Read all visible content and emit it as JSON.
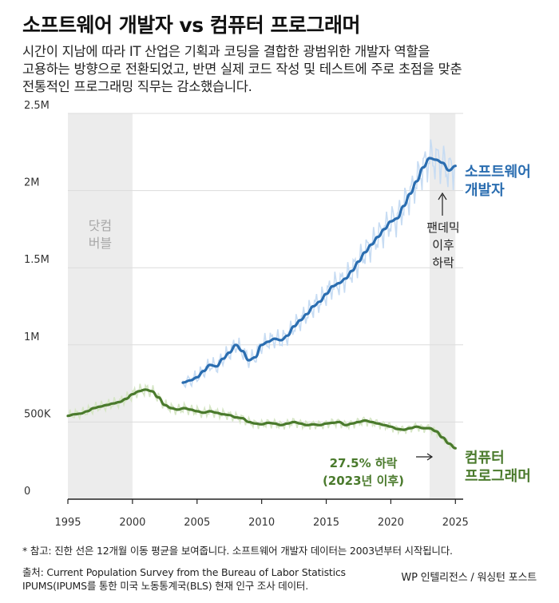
{
  "header": {
    "title": "소프트웨어 개발자 vs 컴퓨터 프로그래머",
    "subtitle_lines": [
      "시간이 지남에 따라 IT 산업은 기획과 코딩을 결합한 광범위한 개발자 역할을",
      "고용하는 방향으로 전환되었고, 반면 실제 코드 작성 및 테스트에 주로 초점을 맞춘",
      "전통적인 프로그래밍 직무는 감소했습니다."
    ]
  },
  "chart_data": {
    "type": "line",
    "title": "소프트웨어 개발자 vs 컴퓨터 프로그래머",
    "xlim": [
      1995,
      2025.6
    ],
    "ylim": [
      0,
      2500000
    ],
    "y_ticks": [
      0,
      500000,
      1000000,
      1500000,
      2000000,
      2500000
    ],
    "y_tick_labels": [
      "0",
      "500K",
      "1M",
      "1.5M",
      "2M",
      "2.5M"
    ],
    "x_ticks": [
      1995,
      2000,
      2005,
      2010,
      2015,
      2020,
      2025
    ],
    "x_tick_labels": [
      "1995",
      "2000",
      "2005",
      "2010",
      "2015",
      "2020",
      "2025"
    ],
    "grid": true,
    "shaded_periods": [
      {
        "label_lines": [
          "닷컴",
          "버블"
        ],
        "start": 1995,
        "end": 2000
      },
      {
        "label_lines": [],
        "start": 2023,
        "end": 2025
      }
    ],
    "series": [
      {
        "name": "소프트웨어 개발자",
        "label_lines": [
          "소프트웨어",
          "개발자"
        ],
        "color": "#2a6db0",
        "raw_color": "#c7dcf3",
        "x": [
          2003.9,
          2004.5,
          2005,
          2005.5,
          2006,
          2006.5,
          2007,
          2007.5,
          2008,
          2008.5,
          2009,
          2009.5,
          2010,
          2010.5,
          2011,
          2011.5,
          2012,
          2012.5,
          2013,
          2013.5,
          2014,
          2014.5,
          2015,
          2015.5,
          2016,
          2016.5,
          2017,
          2017.5,
          2018,
          2018.5,
          2019,
          2019.5,
          2020,
          2020.5,
          2021,
          2021.5,
          2022,
          2022.5,
          2023,
          2023.5,
          2024,
          2024.5,
          2025
        ],
        "values": [
          755000,
          770000,
          790000,
          830000,
          870000,
          860000,
          910000,
          950000,
          1000000,
          960000,
          900000,
          920000,
          1000000,
          1020000,
          1040000,
          1030000,
          1060000,
          1120000,
          1160000,
          1200000,
          1250000,
          1280000,
          1330000,
          1380000,
          1400000,
          1430000,
          1480000,
          1540000,
          1600000,
          1650000,
          1700000,
          1750000,
          1800000,
          1820000,
          1900000,
          1980000,
          2060000,
          2150000,
          2210000,
          2200000,
          2180000,
          2130000,
          2160000
        ]
      },
      {
        "name": "컴퓨터 프로그래머",
        "label_lines": [
          "컴퓨터",
          "프로그래머"
        ],
        "color": "#4a7a2c",
        "raw_color": "#d6e6c6",
        "x": [
          1995,
          1995.5,
          1996,
          1996.5,
          1997,
          1997.5,
          1998,
          1998.5,
          1999,
          1999.5,
          2000,
          2000.5,
          2001,
          2001.5,
          2002,
          2002.5,
          2003,
          2003.5,
          2004,
          2004.5,
          2005,
          2005.5,
          2006,
          2006.5,
          2007,
          2007.5,
          2008,
          2008.5,
          2009,
          2009.5,
          2010,
          2010.5,
          2011,
          2011.5,
          2012,
          2012.5,
          2013,
          2013.5,
          2014,
          2014.5,
          2015,
          2015.5,
          2016,
          2016.5,
          2017,
          2017.5,
          2018,
          2018.5,
          2019,
          2019.5,
          2020,
          2020.5,
          2021,
          2021.5,
          2022,
          2022.5,
          2023,
          2023.5,
          2024,
          2024.5,
          2025
        ],
        "values": [
          540000,
          550000,
          555000,
          570000,
          590000,
          600000,
          610000,
          620000,
          630000,
          650000,
          680000,
          700000,
          710000,
          700000,
          660000,
          610000,
          590000,
          580000,
          590000,
          580000,
          570000,
          560000,
          570000,
          560000,
          550000,
          545000,
          530000,
          525000,
          500000,
          490000,
          485000,
          495000,
          490000,
          480000,
          490000,
          500000,
          490000,
          480000,
          485000,
          480000,
          490000,
          495000,
          500000,
          480000,
          490000,
          500000,
          510000,
          500000,
          490000,
          480000,
          470000,
          455000,
          450000,
          460000,
          470000,
          460000,
          460000,
          440000,
          400000,
          360000,
          330000
        ]
      }
    ],
    "annotations": [
      {
        "lines": [
          "팬데믹",
          "이후",
          "하락"
        ]
      },
      {
        "lines": [
          "27.5% 하락",
          "(2023년 이후)"
        ]
      }
    ]
  },
  "footer": {
    "footnote": "* 참고: 진한 선은 12개월 이동 평균을 보여줍니다. 소프트웨어 개발자 데이터는 2003년부터 시작됩니다.",
    "source_lines": [
      "출처: Current Population Survey from the Bureau of Labor Statistics",
      "IPUMS(IPUMS를 통한 미국 노동통계국(BLS) 현재 인구 조사 데이터."
    ],
    "credit": "WP 인텔리전스 / 워싱턴 포스트"
  },
  "colors": {
    "shade": "#ececec",
    "grid": "#dcdcdc",
    "axis": "#222222",
    "axis_label": "#333333",
    "shade_label": "#a8a8a8",
    "developer": "#2a6db0",
    "programmer": "#4a7a2c"
  }
}
